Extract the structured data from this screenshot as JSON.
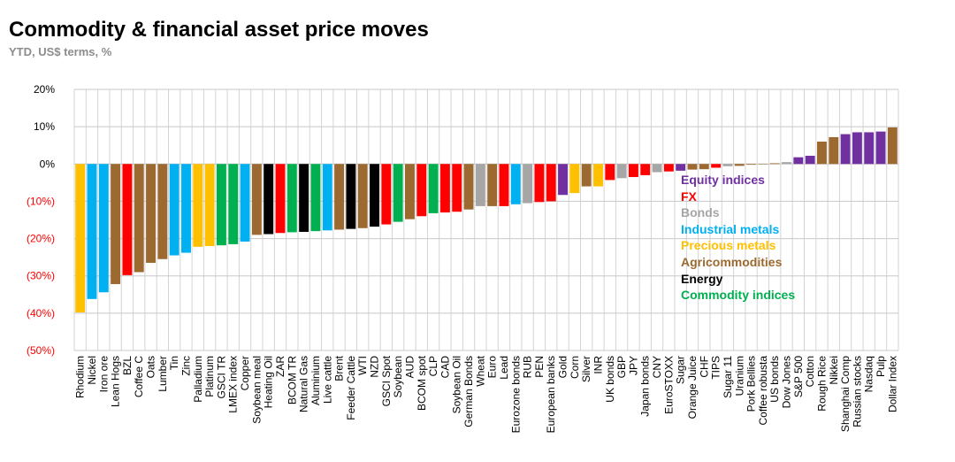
{
  "title": "Commodity & financial asset price moves",
  "subtitle": "YTD, US$ terms, %",
  "chart_data": {
    "type": "bar",
    "ylim": [
      -50,
      20
    ],
    "yticks": [
      20,
      10,
      0,
      -10,
      -20,
      -30,
      -40,
      -50
    ],
    "ytick_labels": [
      "20%",
      "10%",
      "0%",
      "(10%)",
      "(20%)",
      "(30%)",
      "(40%)",
      "(50%)"
    ],
    "grid": true,
    "legend_position": "right-center",
    "colors": {
      "equity": "#7030a0",
      "fx": "#ff0000",
      "bonds": "#a6a6a6",
      "industrial": "#00b0f0",
      "precious": "#ffc000",
      "agri": "#9c6a30",
      "energy": "#000000",
      "commodity_index": "#00b050"
    },
    "legend": [
      {
        "label": "Equity indices",
        "group": "equity"
      },
      {
        "label": "FX",
        "group": "fx"
      },
      {
        "label": "Bonds",
        "group": "bonds"
      },
      {
        "label": "Industrial metals",
        "group": "industrial"
      },
      {
        "label": "Precious metals",
        "group": "precious"
      },
      {
        "label": "Agricommodities",
        "group": "agri"
      },
      {
        "label": "Energy",
        "group": "energy"
      },
      {
        "label": "Commodity indices",
        "group": "commodity_index"
      }
    ],
    "bars": [
      {
        "label": "Rhodium",
        "value": -39.8,
        "group": "precious"
      },
      {
        "label": "Nickel",
        "value": -36.2,
        "group": "industrial"
      },
      {
        "label": "Iron ore",
        "value": -34.4,
        "group": "industrial"
      },
      {
        "label": "Lean Hogs",
        "value": -32.2,
        "group": "agri"
      },
      {
        "label": "BZL",
        "value": -29.8,
        "group": "fx"
      },
      {
        "label": "Coffee C",
        "value": -29.0,
        "group": "agri"
      },
      {
        "label": "Oats",
        "value": -26.5,
        "group": "agri"
      },
      {
        "label": "Lumber",
        "value": -25.5,
        "group": "agri"
      },
      {
        "label": "Tin",
        "value": -24.5,
        "group": "industrial"
      },
      {
        "label": "Zinc",
        "value": -23.8,
        "group": "industrial"
      },
      {
        "label": "Palladium",
        "value": -22.2,
        "group": "precious"
      },
      {
        "label": "Platinum",
        "value": -22.0,
        "group": "precious"
      },
      {
        "label": "GSCI TR",
        "value": -21.8,
        "group": "commodity_index"
      },
      {
        "label": "LMEX index",
        "value": -21.5,
        "group": "commodity_index"
      },
      {
        "label": "Copper",
        "value": -20.8,
        "group": "industrial"
      },
      {
        "label": "Soybean meal",
        "value": -19.0,
        "group": "agri"
      },
      {
        "label": "Heating Oil",
        "value": -18.8,
        "group": "energy"
      },
      {
        "label": "ZAR",
        "value": -18.5,
        "group": "fx"
      },
      {
        "label": "BCOM TR",
        "value": -18.3,
        "group": "commodity_index"
      },
      {
        "label": "Natural Gas",
        "value": -18.2,
        "group": "energy"
      },
      {
        "label": "Aluminium",
        "value": -18.0,
        "group": "commodity_index"
      },
      {
        "label": "Live cattle",
        "value": -17.8,
        "group": "industrial"
      },
      {
        "label": "Brent",
        "value": -17.6,
        "group": "agri"
      },
      {
        "label": "Feeder Cattle",
        "value": -17.4,
        "group": "energy"
      },
      {
        "label": "WTI",
        "value": -17.2,
        "group": "agri"
      },
      {
        "label": "NZD",
        "value": -16.8,
        "group": "energy"
      },
      {
        "label": "GSCI Spot",
        "value": -16.2,
        "group": "fx"
      },
      {
        "label": "Soybean",
        "value": -15.5,
        "group": "commodity_index"
      },
      {
        "label": "AUD",
        "value": -14.8,
        "group": "agri"
      },
      {
        "label": "BCOM spot",
        "value": -14.0,
        "group": "fx"
      },
      {
        "label": "CLP",
        "value": -13.2,
        "group": "commodity_index"
      },
      {
        "label": "CAD",
        "value": -13.0,
        "group": "fx"
      },
      {
        "label": "Soybean Oil",
        "value": -12.8,
        "group": "fx"
      },
      {
        "label": "German Bonds",
        "value": -12.2,
        "group": "agri"
      },
      {
        "label": "Wheat",
        "value": -11.3,
        "group": "bonds"
      },
      {
        "label": "Euro",
        "value": -11.3,
        "group": "agri"
      },
      {
        "label": "Lead",
        "value": -11.3,
        "group": "fx"
      },
      {
        "label": "Eurozone bonds",
        "value": -10.8,
        "group": "industrial"
      },
      {
        "label": "RUB",
        "value": -10.5,
        "group": "bonds"
      },
      {
        "label": "PEN",
        "value": -10.2,
        "group": "fx"
      },
      {
        "label": "European banks",
        "value": -10.0,
        "group": "fx"
      },
      {
        "label": "Gold",
        "value": -8.3,
        "group": "equity"
      },
      {
        "label": "Corn",
        "value": -7.8,
        "group": "precious"
      },
      {
        "label": "Silver",
        "value": -6.0,
        "group": "agri"
      },
      {
        "label": "INR",
        "value": -6.0,
        "group": "precious"
      },
      {
        "label": "UK bonds",
        "value": -4.3,
        "group": "fx"
      },
      {
        "label": "GBP",
        "value": -3.8,
        "group": "bonds"
      },
      {
        "label": "JPY",
        "value": -3.5,
        "group": "fx"
      },
      {
        "label": "Japan bonds",
        "value": -3.0,
        "group": "fx"
      },
      {
        "label": "CNY",
        "value": -2.2,
        "group": "bonds"
      },
      {
        "label": "EuroSTOXX",
        "value": -2.0,
        "group": "fx"
      },
      {
        "label": "Sugar",
        "value": -1.8,
        "group": "equity"
      },
      {
        "label": "Orange Juice",
        "value": -1.5,
        "group": "agri"
      },
      {
        "label": "CHF",
        "value": -1.4,
        "group": "agri"
      },
      {
        "label": "TIPS",
        "value": -1.0,
        "group": "fx"
      },
      {
        "label": "Sugar 11",
        "value": -0.6,
        "group": "bonds"
      },
      {
        "label": "Uranium",
        "value": -0.5,
        "group": "agri"
      },
      {
        "label": "Pork Bellies",
        "value": -0.2,
        "group": "agri"
      },
      {
        "label": "Coffee robusta",
        "value": 0.0,
        "group": "agri"
      },
      {
        "label": "US bonds",
        "value": 0.2,
        "group": "agri"
      },
      {
        "label": "Dow Jones",
        "value": 0.5,
        "group": "bonds"
      },
      {
        "label": "S&P 500",
        "value": 1.8,
        "group": "equity"
      },
      {
        "label": "Cotton",
        "value": 2.2,
        "group": "equity"
      },
      {
        "label": "Rough Rice",
        "value": 6.0,
        "group": "agri"
      },
      {
        "label": "Nikkei",
        "value": 7.2,
        "group": "agri"
      },
      {
        "label": "Shanghai Comp",
        "value": 8.0,
        "group": "equity"
      },
      {
        "label": "Russian stocks",
        "value": 8.5,
        "group": "equity"
      },
      {
        "label": "Nasdaq",
        "value": 8.5,
        "group": "equity"
      },
      {
        "label": "Pulp",
        "value": 8.7,
        "group": "equity"
      },
      {
        "label": "Dollar Index",
        "value": 9.8,
        "group": "agri"
      }
    ]
  }
}
